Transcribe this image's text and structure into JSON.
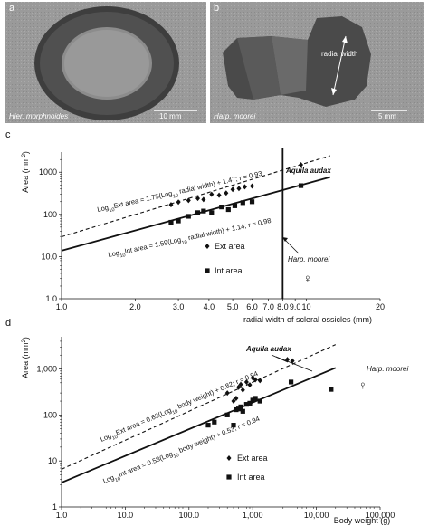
{
  "photos": {
    "a": {
      "panel_label": "a",
      "species": "Hier. morphnoides",
      "scale": "10 mm"
    },
    "b": {
      "panel_label": "b",
      "species": "Harp. moorei",
      "scale": "5 mm",
      "annotation": "radial width"
    }
  },
  "chart_data": [
    {
      "panel_label": "c",
      "type": "scatter",
      "xscale": "log",
      "yscale": "log",
      "xlim": [
        1.0,
        20
      ],
      "ylim": [
        1.0,
        3000
      ],
      "xlabel": "radial width of scleral ossicles (mm)",
      "ylabel": "Area (mm²)",
      "xticks": [
        1.0,
        2.0,
        3.0,
        4.0,
        5.0,
        6.0,
        7.0,
        8.0,
        9.0,
        10,
        20
      ],
      "xtick_labels": [
        "1.0",
        "2.0",
        "3.0",
        "4.0",
        "5.0",
        "6.0",
        "7.0",
        "8.0",
        "9.0",
        "10",
        "20"
      ],
      "yticks": [
        1.0,
        10.0,
        100,
        1000
      ],
      "ytick_labels": [
        "1.0",
        "10.0",
        "100",
        "1000"
      ],
      "series": [
        {
          "name": "Ext area",
          "marker": "diamond",
          "x": [
            2.8,
            3.0,
            3.3,
            3.6,
            3.8,
            4.1,
            4.4,
            4.7,
            5.0,
            5.3,
            5.6,
            6.0,
            9.5
          ],
          "y": [
            170,
            195,
            215,
            240,
            225,
            300,
            285,
            320,
            390,
            410,
            450,
            470,
            1500
          ]
        },
        {
          "name": "Int area",
          "marker": "square",
          "x": [
            2.8,
            3.0,
            3.3,
            3.6,
            3.8,
            4.1,
            4.5,
            4.8,
            5.1,
            5.5,
            6.0,
            9.5
          ],
          "y": [
            65,
            70,
            90,
            110,
            120,
            110,
            150,
            130,
            160,
            190,
            200,
            480
          ]
        }
      ],
      "fits": [
        {
          "series": "Ext area",
          "style": "dashed",
          "slope": 1.75,
          "intercept": 1.47,
          "label": "Log10Ext area = 1.75(Log10 radial width) + 1.47; r = 0.93"
        },
        {
          "series": "Int area",
          "style": "solid",
          "slope": 1.59,
          "intercept": 1.14,
          "label": "Log10Int area = 1.59(Log10 radial width) + 1.14; r = 0.98"
        }
      ],
      "vertical_line_x": 8.0,
      "annotations": [
        "Aquila audax",
        "Harp. moorei",
        "♀"
      ],
      "legend": [
        {
          "marker": "diamond",
          "label": "Ext area"
        },
        {
          "marker": "square",
          "label": "Int area"
        }
      ],
      "grid": false
    },
    {
      "panel_label": "d",
      "type": "scatter",
      "xscale": "log",
      "yscale": "log",
      "xlim": [
        1.0,
        100000
      ],
      "ylim": [
        1,
        5000
      ],
      "xlabel": "Body weight (g)",
      "ylabel": "Area (mm²)",
      "xticks": [
        1.0,
        10.0,
        100.0,
        1000,
        10000,
        100000
      ],
      "xtick_labels": [
        "1.0",
        "10.0",
        "100.0",
        "1,000",
        "10,000",
        "100,000"
      ],
      "yticks": [
        1,
        10,
        100,
        1000
      ],
      "ytick_labels": [
        "1",
        "10",
        "100",
        "1,000"
      ],
      "series": [
        {
          "name": "Ext area",
          "marker": "diamond",
          "x": [
            400,
            500,
            550,
            600,
            650,
            700,
            800,
            900,
            1000,
            1100,
            1300,
            3500,
            4200
          ],
          "y": [
            300,
            200,
            230,
            400,
            460,
            350,
            520,
            450,
            640,
            580,
            560,
            1600,
            1500
          ]
        },
        {
          "name": "Int area",
          "marker": "square",
          "x": [
            200,
            250,
            400,
            500,
            550,
            600,
            650,
            700,
            800,
            900,
            1000,
            1100,
            1300,
            4000,
            17000
          ],
          "y": [
            60,
            70,
            100,
            60,
            130,
            135,
            150,
            120,
            170,
            180,
            210,
            230,
            200,
            520,
            360
          ]
        }
      ],
      "fits": [
        {
          "series": "Ext area",
          "style": "dashed",
          "slope": 0.63,
          "intercept": 0.82,
          "label": "Log10Ext area = 0.63(Log10 body weight) + 0.82; r = 0.94"
        },
        {
          "series": "Int area",
          "style": "solid",
          "slope": 0.58,
          "intercept": 0.53,
          "label": "Log10Int area = 0.58(Log10 body weight) + 0.53; r = 0.94"
        }
      ],
      "annotations": [
        "Aquila audax",
        "Harp. moorei",
        "♀"
      ],
      "legend": [
        {
          "marker": "diamond",
          "label": "Ext area"
        },
        {
          "marker": "square",
          "label": "Int area"
        }
      ],
      "grid": false
    }
  ]
}
